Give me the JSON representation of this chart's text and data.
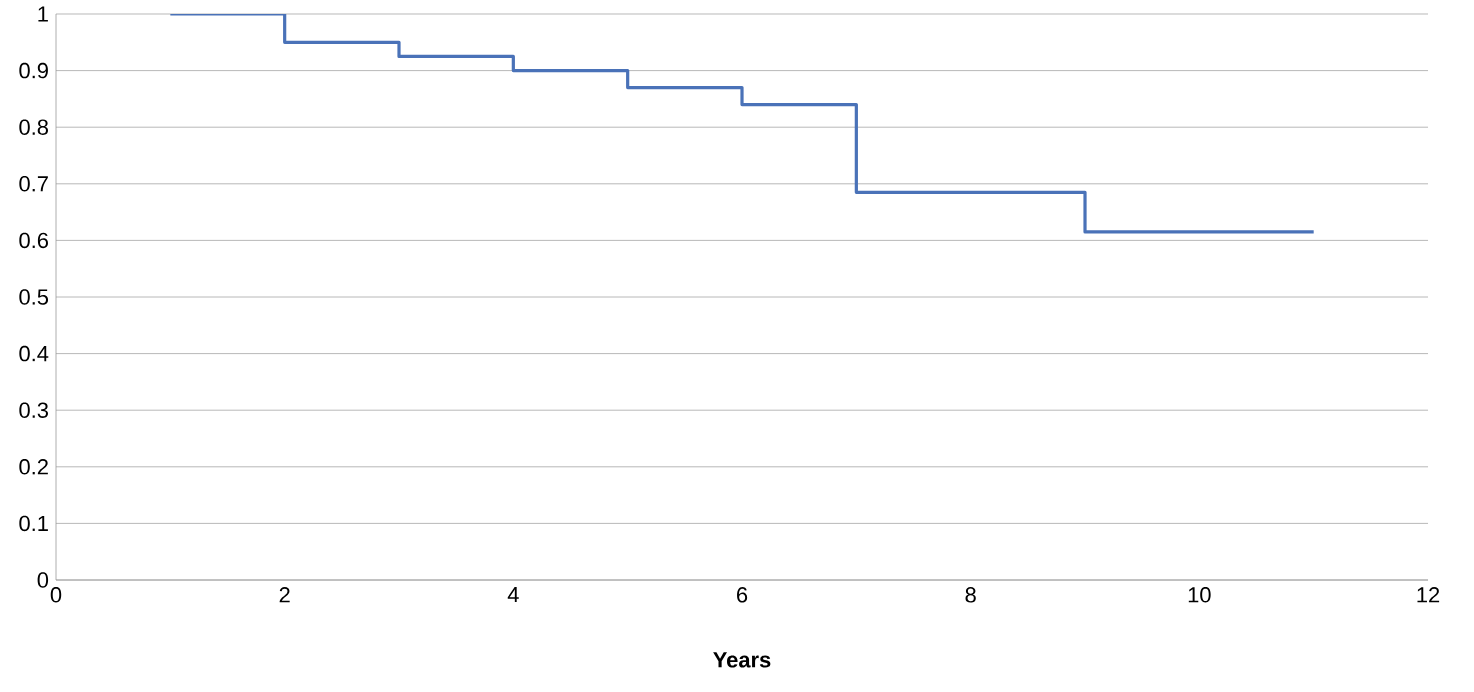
{
  "chart_data": {
    "type": "step",
    "xlabel": "Years",
    "x": [
      1,
      2,
      3,
      4,
      5,
      6,
      7,
      9,
      11
    ],
    "values": [
      1,
      0.95,
      0.925,
      0.9,
      0.87,
      0.84,
      0.685,
      0.615,
      0.615
    ],
    "color": "#4a72b8",
    "xlim": [
      0,
      12
    ],
    "xticks": [
      0,
      2,
      4,
      6,
      8,
      10,
      12
    ],
    "ylim": [
      0,
      1
    ],
    "yticks": [
      0,
      0.1,
      0.2,
      0.3,
      0.4,
      0.5,
      0.6,
      0.7,
      0.8,
      0.9,
      1
    ],
    "grid": "y",
    "marker": "none"
  }
}
